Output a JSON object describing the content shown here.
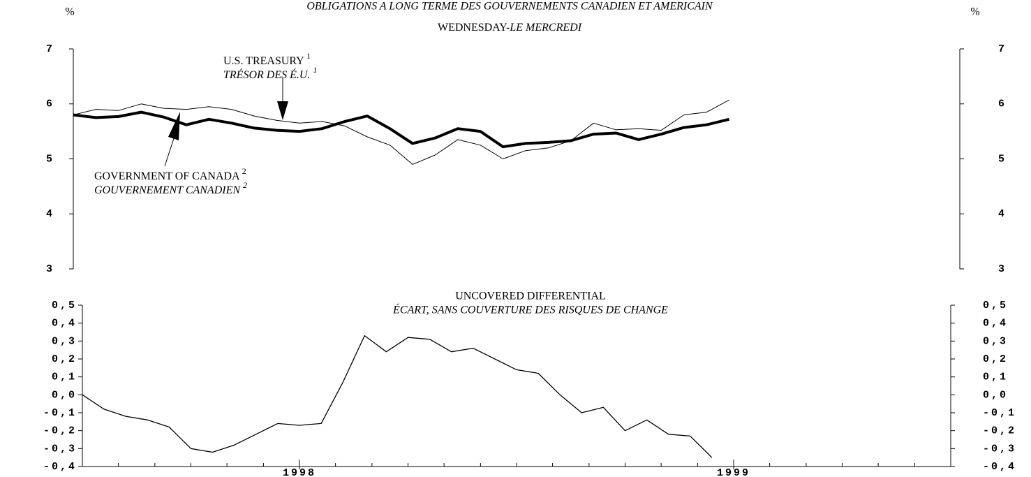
{
  "chart_data": [
    {
      "type": "line",
      "title": "OBLIGATIONS A LONG TERME DES GOUVERNEMENTS CANADIEN ET AMERICAIN",
      "subtitle": [
        "WEDNESDAY-",
        "LE MERCREDI"
      ],
      "y_unit": "%",
      "y2_unit": "%",
      "x": [
        1997.5,
        1997.55,
        1997.6,
        1997.65,
        1997.7,
        1997.75,
        1997.8,
        1997.85,
        1997.9,
        1997.95,
        1998.0,
        1998.05,
        1998.1,
        1998.15,
        1998.2,
        1998.25,
        1998.3,
        1998.35,
        1998.4,
        1998.45,
        1998.5,
        1998.55,
        1998.6,
        1998.65,
        1998.7,
        1998.75,
        1998.8,
        1998.85,
        1998.9,
        1998.95
      ],
      "series": [
        {
          "color": "#000000",
          "width": 1,
          "values": [
            5.8,
            5.9,
            5.88,
            6.0,
            5.92,
            5.9,
            5.95,
            5.9,
            5.78,
            5.7,
            5.65,
            5.68,
            5.6,
            5.4,
            5.25,
            4.9,
            5.07,
            5.35,
            5.25,
            5.0,
            5.15,
            5.2,
            5.33,
            5.65,
            5.53,
            5.55,
            5.52,
            5.8,
            5.85,
            6.07
          ]
        },
        {
          "color": "#000000",
          "width": 4,
          "values": [
            5.8,
            5.75,
            5.77,
            5.85,
            5.76,
            5.62,
            5.72,
            5.65,
            5.56,
            5.52,
            5.5,
            5.55,
            5.68,
            5.78,
            5.55,
            5.28,
            5.38,
            5.55,
            5.5,
            5.22,
            5.28,
            5.3,
            5.33,
            5.45,
            5.47,
            5.35,
            5.45,
            5.57,
            5.62,
            5.72
          ]
        }
      ],
      "annotations": [
        {
          "text": "U.S. TREASURY",
          "note": "1"
        },
        {
          "text": "TRÉSOR DES É.U.",
          "note": "1"
        },
        {
          "text": "GOVERNMENT OF CANADA",
          "note": "2"
        },
        {
          "text": "GOUVERNEMENT CANADIEN",
          "note": "2"
        }
      ],
      "xlim": [
        1997.5,
        1999.46
      ],
      "ylim": [
        3,
        7
      ],
      "yticks": [
        3,
        4,
        5,
        6,
        7
      ],
      "y2lim": [
        3,
        7
      ],
      "y2ticks": [
        3,
        4,
        5,
        6,
        7
      ]
    },
    {
      "type": "line",
      "title": "UNCOVERED DIFFERENTIAL",
      "subtitle": "ÉCART, SANS COUVERTURE DES RISQUES DE CHANGE",
      "x": [
        1997.5,
        1997.55,
        1997.6,
        1997.65,
        1997.7,
        1997.75,
        1997.8,
        1997.85,
        1997.9,
        1997.95,
        1998.0,
        1998.05,
        1998.1,
        1998.15,
        1998.2,
        1998.25,
        1998.3,
        1998.35,
        1998.4,
        1998.45,
        1998.5,
        1998.55,
        1998.6,
        1998.65,
        1998.7,
        1998.75,
        1998.8,
        1998.85,
        1998.9,
        1998.95
      ],
      "values": [
        0.0,
        -0.08,
        -0.12,
        -0.14,
        -0.18,
        -0.3,
        -0.32,
        -0.28,
        -0.22,
        -0.16,
        -0.17,
        -0.16,
        0.07,
        0.33,
        0.24,
        0.32,
        0.31,
        0.24,
        0.26,
        0.2,
        0.14,
        0.12,
        0.0,
        -0.1,
        -0.07,
        -0.2,
        -0.14,
        -0.22,
        -0.23,
        -0.35
      ],
      "color": "#000000",
      "xlim": [
        1997.5,
        1999.5
      ],
      "xticks": [
        1998,
        1999
      ],
      "xminorticks": [
        1997.583,
        1997.667,
        1997.75,
        1997.833,
        1997.917,
        1998.083,
        1998.167,
        1998.25,
        1998.333,
        1998.417,
        1998.5,
        1998.583,
        1998.667,
        1998.75,
        1998.833,
        1998.917,
        1999.083,
        1999.167,
        1999.25,
        1999.333,
        1999.417
      ],
      "ylim": [
        -0.4,
        0.5
      ],
      "yticks": [
        {
          "value": -0.4,
          "label": "-0,4"
        },
        {
          "value": -0.3,
          "label": "-0,3"
        },
        {
          "value": -0.2,
          "label": "-0,2"
        },
        {
          "value": -0.1,
          "label": "-0,1"
        },
        {
          "value": 0,
          "label": "0,0"
        },
        {
          "value": 0.1,
          "label": "0,1"
        },
        {
          "value": 0.2,
          "label": "0,2"
        },
        {
          "value": 0.3,
          "label": "0,3"
        },
        {
          "value": 0.4,
          "label": "0,4"
        },
        {
          "value": 0.5,
          "label": "0,5"
        }
      ],
      "y2lim": [
        -0.4,
        0.5
      ],
      "y2ticks": [
        {
          "value": -0.4,
          "label": "-0,4"
        },
        {
          "value": -0.3,
          "label": "-0,3"
        },
        {
          "value": -0.2,
          "label": "-0,2"
        },
        {
          "value": -0.1,
          "label": "-0,1"
        },
        {
          "value": 0,
          "label": "0,0"
        },
        {
          "value": 0.1,
          "label": "0,1"
        },
        {
          "value": 0.2,
          "label": "0,2"
        },
        {
          "value": 0.3,
          "label": "0,3"
        },
        {
          "value": 0.4,
          "label": "0,4"
        },
        {
          "value": 0.5,
          "label": "0,5"
        }
      ]
    }
  ]
}
